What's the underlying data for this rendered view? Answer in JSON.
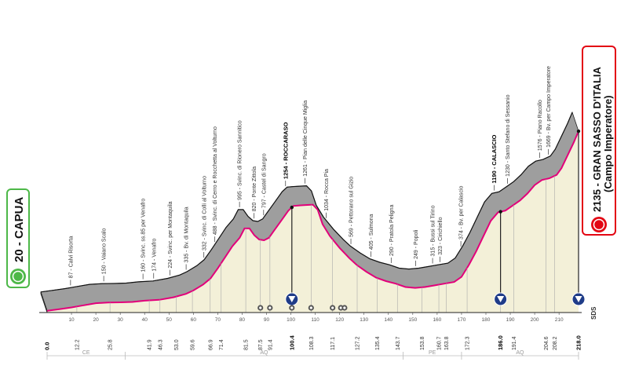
{
  "start": {
    "name": "20 - CAPUA",
    "km": 0.0,
    "alt": 20
  },
  "finish": {
    "name": "2135 - GRAN SASSO D'ITALIA",
    "sub": "(Campo Imperatore)",
    "km": 218.0,
    "alt": 2135
  },
  "chart_data": {
    "type": "area",
    "xlim": [
      0,
      218
    ],
    "ylim": [
      0,
      2200
    ],
    "profile": [
      [
        0,
        20
      ],
      [
        5,
        40
      ],
      [
        10,
        60
      ],
      [
        14,
        80
      ],
      [
        20,
        110
      ],
      [
        25,
        118
      ],
      [
        30,
        120
      ],
      [
        35,
        125
      ],
      [
        40,
        140
      ],
      [
        46,
        150
      ],
      [
        52,
        180
      ],
      [
        57,
        220
      ],
      [
        60,
        260
      ],
      [
        64,
        330
      ],
      [
        67,
        400
      ],
      [
        70,
        520
      ],
      [
        73,
        650
      ],
      [
        76,
        780
      ],
      [
        79,
        880
      ],
      [
        81,
        990
      ],
      [
        83,
        990
      ],
      [
        85,
        910
      ],
      [
        87,
        860
      ],
      [
        89,
        850
      ],
      [
        91,
        880
      ],
      [
        93,
        960
      ],
      [
        96,
        1080
      ],
      [
        99,
        1200
      ],
      [
        101,
        1254
      ],
      [
        103,
        1260
      ],
      [
        106,
        1265
      ],
      [
        109,
        1270
      ],
      [
        111,
        1210
      ],
      [
        113,
        1040
      ],
      [
        116,
        900
      ],
      [
        120,
        760
      ],
      [
        124,
        640
      ],
      [
        127,
        560
      ],
      [
        131,
        480
      ],
      [
        135,
        410
      ],
      [
        139,
        370
      ],
      [
        143,
        340
      ],
      [
        147,
        300
      ],
      [
        151,
        290
      ],
      [
        155,
        300
      ],
      [
        159,
        320
      ],
      [
        163,
        340
      ],
      [
        167,
        360
      ],
      [
        170,
        420
      ],
      [
        173,
        560
      ],
      [
        176,
        720
      ],
      [
        179,
        900
      ],
      [
        182,
        1080
      ],
      [
        185,
        1180
      ],
      [
        188,
        1200
      ],
      [
        191,
        1260
      ],
      [
        194,
        1320
      ],
      [
        197,
        1400
      ],
      [
        200,
        1500
      ],
      [
        203,
        1560
      ],
      [
        206,
        1580
      ],
      [
        209,
        1620
      ],
      [
        211,
        1700
      ],
      [
        213,
        1820
      ],
      [
        216,
        2000
      ],
      [
        218,
        2135
      ]
    ],
    "x_ticks": [
      10,
      20,
      30,
      40,
      50,
      60,
      70,
      80,
      90,
      100,
      110,
      120,
      130,
      140,
      150,
      160,
      170,
      180,
      190,
      200,
      210
    ],
    "y_ticks": [
      200,
      400,
      600,
      800,
      1000,
      1200,
      1400,
      1600,
      1800
    ],
    "provinces": [
      {
        "code": "CE",
        "from": 0,
        "to": 32
      },
      {
        "code": "AQ",
        "from": 32,
        "to": 146
      },
      {
        "code": "PE",
        "from": 146,
        "to": 170
      },
      {
        "code": "AQ",
        "from": 170,
        "to": 218
      }
    ],
    "waypoints": [
      {
        "km": 12.2,
        "km_label": "12.2",
        "label": "87 - Calvi Risorta",
        "alt": 87
      },
      {
        "km": 25.8,
        "km_label": "25.8",
        "label": "150 - Vaiano Scalo",
        "alt": 150
      },
      {
        "km": 41.9,
        "km_label": "41.9",
        "label": "160 - Svinc. ss.85 per Venafro",
        "alt": 160
      },
      {
        "km": 46.3,
        "km_label": "46.3",
        "label": "174 - Venafro",
        "alt": 174
      },
      {
        "km": 53.0,
        "km_label": "53.0",
        "label": "224 - Svinc. per Montaquila",
        "alt": 224
      },
      {
        "km": 59.6,
        "km_label": "59.6",
        "label": "335 - Bv. di Montaquila",
        "alt": 335
      },
      {
        "km": 66.9,
        "km_label": "66.9",
        "label": "332 - Svinc. di Colli al Volturno",
        "alt": 332
      },
      {
        "km": 71.4,
        "km_label": "71.4",
        "label": "488 - Svinc. di Cerro e Rocchetta al Volturno",
        "alt": 488
      },
      {
        "km": 81.5,
        "km_label": "81.5",
        "label": "995 - Svinc. di Rionero Sannitico",
        "alt": 995
      },
      {
        "km": 87.5,
        "km_label": "87.5",
        "label": "820 - Ponte Zittola",
        "alt": 820
      },
      {
        "km": 91.4,
        "km_label": "91.4",
        "label": "797 - Castel di Sangro",
        "alt": 797
      },
      {
        "km": 100.4,
        "km_label": "100.4",
        "label": "1254 - ROCCARASO",
        "alt": 1254,
        "bold": true
      },
      {
        "km": 108.3,
        "km_label": "108.3",
        "label": "1261 - Pian delle Cinque Miglia",
        "alt": 1261
      },
      {
        "km": 117.1,
        "km_label": "117.1",
        "label": "1034 - Rocca Pia",
        "alt": 1034
      },
      {
        "km": 127.2,
        "km_label": "127.2",
        "label": "569 - Pettorano sul Gizio",
        "alt": 569
      },
      {
        "km": 135.4,
        "km_label": "135.4",
        "label": "405 - Sulmona",
        "alt": 405
      },
      {
        "km": 143.7,
        "km_label": "143.7",
        "label": "290 - Pratola Peligna",
        "alt": 290
      },
      {
        "km": 153.8,
        "km_label": "153.8",
        "label": "249 - Popoli",
        "alt": 249
      },
      {
        "km": 160.7,
        "km_label": "160.7",
        "label": "315 - Bussi sul Tirino",
        "alt": 315
      },
      {
        "km": 163.8,
        "km_label": "163.8",
        "label": "323 - Cirichiello",
        "alt": 323
      },
      {
        "km": 172.3,
        "km_label": "172.3",
        "label": "374 - Bv. per Calascio",
        "alt": 374
      },
      {
        "km": 186.0,
        "km_label": "186.0",
        "label": "1190 - CALASCIO",
        "alt": 1190,
        "bold": true
      },
      {
        "km": 191.4,
        "km_label": "191.4",
        "label": "1230 - Santo Stefano di Sessanio",
        "alt": 1230
      },
      {
        "km": 204.6,
        "km_label": "204.6",
        "label": "1576 - Piano Racollo",
        "alt": 1576
      },
      {
        "km": 208.2,
        "km_label": "208.2",
        "label": "1669 - Bv. per Campo Imperatore",
        "alt": 1669
      }
    ],
    "sprints_km": [
      100.4,
      186.0,
      218.0
    ],
    "feed_icons_km": [
      87.5,
      91.4,
      100.4,
      108.3,
      117.1,
      120.5,
      122.0
    ]
  },
  "logo": "SDS",
  "colors": {
    "fill": "#f3f0d8",
    "shadow": "#9e9e9e",
    "road": "#e2007a",
    "start": "#4db848",
    "finish": "#e30613"
  }
}
